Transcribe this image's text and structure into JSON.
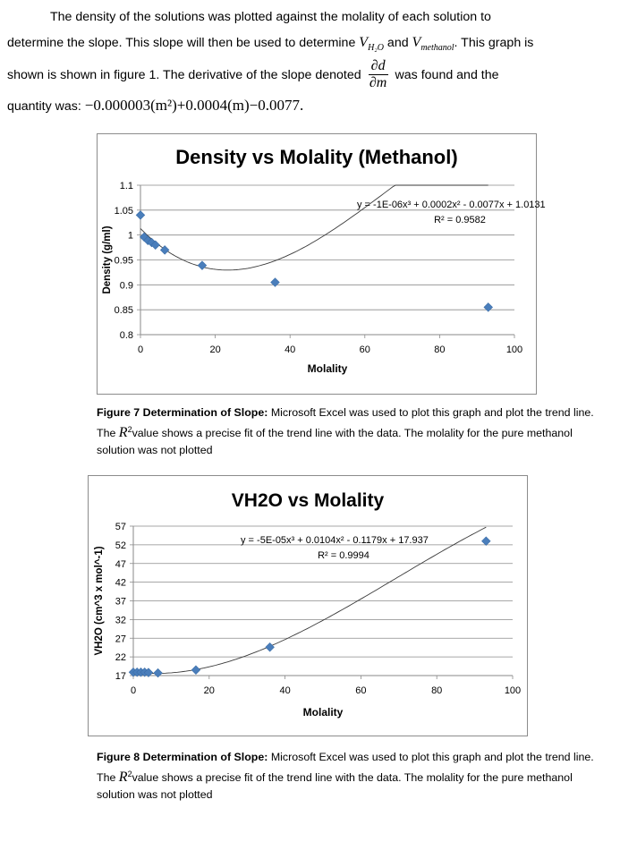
{
  "intro": {
    "l1": "The density of the solutions was plotted against the molality of each solution to",
    "l2a": "determine the slope.  This slope will then be used to determine ",
    "v_sym": "V",
    "h2o_sub": "H₂O",
    "and": " and ",
    "methanol_sub": "methanol",
    "l2b": ".  This graph is",
    "l3a": "shown is shown in figure 1.  The derivative of the slope denoted ",
    "deriv_num": "∂d",
    "deriv_den": "∂m",
    "l3b": " was found and the",
    "l4a": "quantity was: ",
    "equation": "−0.000003(m²)+0.0004(m)−0.0077."
  },
  "charts": [
    {
      "title": "Density vs Molality (Methanol)",
      "xlabel": "Molality",
      "ylabel": "Density (g/ml)",
      "trendline_eq": "y = -1E-06x³ + 0.0002x² - 0.0077x + 1.0131",
      "r_squared": "R² = 0.9582",
      "caption_bold": "Figure 7 Determination of Slope:",
      "caption_pre": " Microsoft Excel was used to plot this graph and plot the trend line.  The ",
      "caption_r": "R",
      "caption_post": "value shows a precise fit of the trend line with the data.  The molality for the pure methanol solution was not plotted"
    },
    {
      "title": "VH2O vs Molality",
      "xlabel": "Molality",
      "ylabel": "VH2O (cm^3 x mol^-1)",
      "trendline_eq": "y = -5E-05x³ + 0.0104x² - 0.1179x + 17.937",
      "r_squared": "R² = 0.9994",
      "caption_bold": "Figure 8 Determination of Slope:",
      "caption_pre": " Microsoft Excel was used to plot this graph and plot the trend line.  The ",
      "caption_r": "R",
      "caption_post": "value shows a precise fit of the trend line with the data.  The molality for the pure methanol solution was not plotted"
    }
  ],
  "chart_data": [
    {
      "type": "scatter",
      "title": "Density vs Molality (Methanol)",
      "xlabel": "Molality",
      "ylabel": "Density (g/ml)",
      "xlim": [
        0,
        100
      ],
      "ylim": [
        0.8,
        1.1
      ],
      "x_ticks": [
        "0",
        "20",
        "40",
        "60",
        "80",
        "100"
      ],
      "y_ticks": [
        "0.8",
        "0.85",
        "0.9",
        "0.95",
        "1",
        "1.05",
        "1.1"
      ],
      "points": [
        {
          "x": 0.0,
          "y": 1.04
        },
        {
          "x": 1.0,
          "y": 0.996
        },
        {
          "x": 2.0,
          "y": 0.989
        },
        {
          "x": 3.0,
          "y": 0.985
        },
        {
          "x": 4.0,
          "y": 0.98
        },
        {
          "x": 6.5,
          "y": 0.97
        },
        {
          "x": 16.5,
          "y": 0.939
        },
        {
          "x": 36.0,
          "y": 0.905
        },
        {
          "x": 93.0,
          "y": 0.855
        }
      ],
      "trendline": {
        "type": "polynomial",
        "coeffs": [
          -1e-06,
          0.0002,
          -0.0077,
          1.0131
        ]
      },
      "grid": "horizontal",
      "marker_color": "#4a7ebb"
    },
    {
      "type": "scatter",
      "title": "VH2O vs Molality",
      "xlabel": "Molality",
      "ylabel": "VH2O (cm^3 x mol^-1)",
      "xlim": [
        0,
        100
      ],
      "ylim": [
        17,
        57
      ],
      "x_ticks": [
        "0",
        "20",
        "40",
        "60",
        "80",
        "100"
      ],
      "y_ticks": [
        "17",
        "22",
        "27",
        "32",
        "37",
        "42",
        "47",
        "52",
        "57"
      ],
      "points": [
        {
          "x": 0.0,
          "y": 17.9
        },
        {
          "x": 1.0,
          "y": 17.9
        },
        {
          "x": 2.0,
          "y": 17.9
        },
        {
          "x": 3.0,
          "y": 17.9
        },
        {
          "x": 4.0,
          "y": 17.8
        },
        {
          "x": 6.5,
          "y": 17.7
        },
        {
          "x": 16.5,
          "y": 18.5
        },
        {
          "x": 36.0,
          "y": 24.6
        },
        {
          "x": 93.0,
          "y": 53.0
        }
      ],
      "trendline": {
        "type": "polynomial",
        "coeffs": [
          -5e-05,
          0.0104,
          -0.1179,
          17.937
        ]
      },
      "grid": "horizontal",
      "marker_color": "#4a7ebb"
    }
  ]
}
